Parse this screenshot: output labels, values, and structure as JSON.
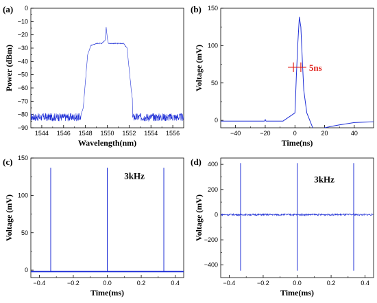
{
  "colors": {
    "trace": "#1f2fd6",
    "annotation": "#e0201a",
    "axis": "#000000"
  },
  "chart_data": [
    {
      "panel": "(a)",
      "type": "line",
      "xlabel": "Wavelength(nm)",
      "ylabel": "Power (dBm)",
      "xlim": [
        1543,
        1557
      ],
      "ylim": [
        -90,
        0
      ],
      "xticks": [
        1544,
        1546,
        1548,
        1550,
        1552,
        1554,
        1556
      ],
      "yticks": [
        -90,
        -80,
        -70,
        -60,
        -50,
        -40,
        -30,
        -20,
        -10,
        0
      ],
      "grid": false,
      "series": [
        {
          "noise_floor_dbm": [
            -85,
            -79
          ],
          "x": [
            1543,
            1547.5,
            1547.8,
            1548.0,
            1548.2,
            1548.5,
            1549.0,
            1549.5,
            1549.8,
            1549.9,
            1550.0,
            1550.1,
            1550.3,
            1551.0,
            1551.5,
            1551.8,
            1552.0,
            1552.2,
            1552.5,
            1557
          ],
          "y": [
            -82,
            -82,
            -75,
            -55,
            -35,
            -28,
            -26.5,
            -26.5,
            -24,
            -14,
            -22,
            -26.5,
            -26.5,
            -26.5,
            -26.5,
            -30,
            -45,
            -62,
            -80,
            -82
          ]
        }
      ]
    },
    {
      "panel": "(b)",
      "type": "line",
      "xlabel": "Time(ns)",
      "ylabel": "Voltage (mV)",
      "xlim": [
        -50,
        53
      ],
      "ylim": [
        -10,
        150
      ],
      "xticks": [
        -40,
        -20,
        0,
        20,
        40
      ],
      "yticks": [
        0,
        50,
        100,
        150
      ],
      "grid": false,
      "annotations": [
        {
          "text": "5ns",
          "x_center": 1.5,
          "y": 71,
          "width_ns": 5
        }
      ],
      "series": [
        {
          "x": [
            -50,
            -20.5,
            -20,
            -19.5,
            -8,
            0,
            1,
            2,
            3,
            4,
            5,
            6,
            8,
            10,
            12,
            13,
            14,
            16,
            20,
            25,
            30,
            40,
            53
          ],
          "y": [
            -1,
            -1,
            1,
            -1,
            -1,
            10,
            60,
            105,
            138,
            125,
            80,
            40,
            10,
            0,
            -10,
            -15,
            -17,
            -14,
            -10,
            -8,
            -6,
            -3,
            -2
          ]
        }
      ]
    },
    {
      "panel": "(c)",
      "type": "line",
      "xlabel": "Time(ms)",
      "ylabel": "Voltage (mV)",
      "xlim": [
        -0.45,
        0.45
      ],
      "ylim": [
        -10,
        150
      ],
      "xticks": [
        -0.4,
        -0.2,
        0.0,
        0.2,
        0.4
      ],
      "yticks": [
        0,
        50,
        100,
        150
      ],
      "grid": false,
      "annotations": [
        {
          "text": "3kHz"
        }
      ],
      "series": [
        {
          "baseline_mv": -2,
          "peak_mv": 137,
          "pulse_times_ms": [
            -0.333,
            0.0,
            0.333
          ]
        }
      ]
    },
    {
      "panel": "(d)",
      "type": "line",
      "xlabel": "Time(ms)",
      "ylabel": "Voltage (mV)",
      "xlim": [
        -0.45,
        0.45
      ],
      "ylim": [
        -500,
        450
      ],
      "xticks": [
        -0.4,
        -0.2,
        0.0,
        0.2,
        0.4
      ],
      "yticks": [
        -400,
        -200,
        0,
        200,
        400
      ],
      "grid": false,
      "annotations": [
        {
          "text": "3kHz"
        }
      ],
      "series": [
        {
          "baseline_mv": 0,
          "peak_mv": 410,
          "trough_mv": -445,
          "pulse_times_ms": [
            -0.333,
            0.0,
            0.333
          ]
        }
      ]
    }
  ]
}
